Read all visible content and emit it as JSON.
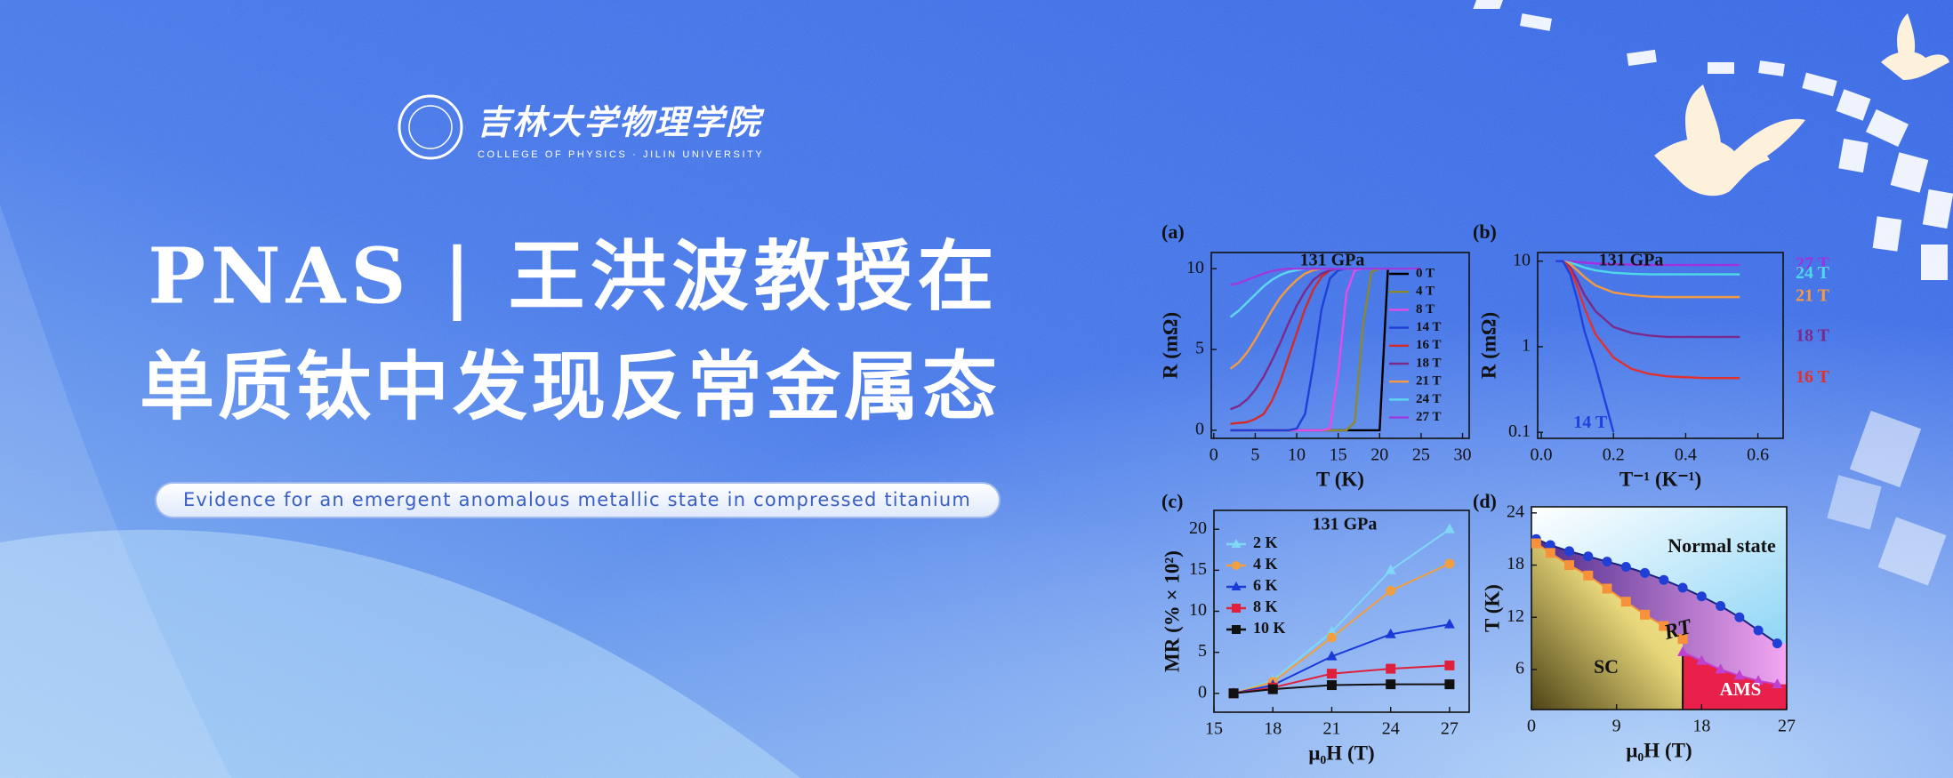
{
  "header": {
    "logo_cn": "吉林大学物理学院",
    "logo_en": "COLLEGE OF PHYSICS · JILIN UNIVERSITY"
  },
  "headline": [
    "PNAS | 王洪波教授在",
    "单质钛中发现反常金属态"
  ],
  "subtitle": "Evidence for an emergent anomalous metallic state in compressed titanium",
  "chart_data": [
    {
      "type": "line",
      "label": "(a)",
      "annotation": "131 GPa",
      "x_label": "T (K)",
      "y_label": "R (mΩ)",
      "x": [
        2,
        3,
        4,
        5,
        6,
        7,
        8,
        9,
        10,
        11,
        12,
        13,
        14,
        15,
        16,
        17,
        18,
        19,
        20,
        21,
        22,
        23,
        24,
        25
      ],
      "series": [
        {
          "name": "0 T",
          "color": "#000000",
          "values": [
            0,
            0,
            0,
            0,
            0,
            0,
            0,
            0,
            0,
            0,
            0,
            0,
            0,
            0,
            0,
            0,
            0,
            0,
            0,
            10,
            10,
            10,
            10,
            10
          ]
        },
        {
          "name": "4 T",
          "color": "#8a8a2a",
          "values": [
            0,
            0,
            0,
            0,
            0,
            0,
            0,
            0,
            0,
            0,
            0,
            0,
            0,
            0,
            0,
            0.5,
            6.5,
            9.8,
            10,
            10,
            10,
            10,
            10,
            10
          ]
        },
        {
          "name": "8 T",
          "color": "#e84ae8",
          "values": [
            0,
            0,
            0,
            0,
            0,
            0,
            0,
            0,
            0,
            0,
            0,
            0,
            0.1,
            3.5,
            8.5,
            9.9,
            10,
            10,
            10,
            10,
            10,
            10,
            10,
            10
          ]
        },
        {
          "name": "14 T",
          "color": "#1f3fd6",
          "values": [
            0,
            0,
            0,
            0,
            0,
            0,
            0,
            0,
            0.1,
            1,
            4,
            7.5,
            9.4,
            9.9,
            10,
            10,
            10,
            10,
            10,
            10,
            10,
            10,
            10,
            10
          ]
        },
        {
          "name": "16 T",
          "color": "#d42a2a",
          "values": [
            0.4,
            0.45,
            0.5,
            0.7,
            1,
            1.8,
            3,
            4.5,
            6,
            7.5,
            8.7,
            9.5,
            9.9,
            10,
            10,
            10,
            10,
            10,
            10,
            10,
            10,
            10,
            10,
            10
          ]
        },
        {
          "name": "18 T",
          "color": "#7a2a8a",
          "values": [
            1.3,
            1.5,
            1.9,
            2.5,
            3.3,
            4.3,
            5.4,
            6.6,
            7.7,
            8.6,
            9.3,
            9.7,
            9.9,
            10,
            10,
            10,
            10,
            10,
            10,
            10,
            10,
            10,
            10,
            10
          ]
        },
        {
          "name": "21 T",
          "color": "#f59a40",
          "values": [
            3.8,
            4.2,
            4.8,
            5.6,
            6.5,
            7.4,
            8.2,
            8.8,
            9.3,
            9.7,
            9.9,
            10,
            10,
            10,
            10,
            10,
            10,
            10,
            10,
            10,
            10,
            10,
            10,
            10
          ]
        },
        {
          "name": "24 T",
          "color": "#60d8f0",
          "values": [
            7,
            7.4,
            7.9,
            8.4,
            8.9,
            9.3,
            9.6,
            9.8,
            9.9,
            10,
            10,
            10,
            10,
            10,
            10,
            10,
            10,
            10,
            10,
            10,
            10,
            10,
            10,
            10
          ]
        },
        {
          "name": "27 T",
          "color": "#9c3ae0",
          "values": [
            9,
            9.1,
            9.3,
            9.5,
            9.7,
            9.85,
            9.95,
            10,
            10,
            10,
            10,
            10,
            10,
            10,
            10,
            10,
            10,
            10,
            10,
            10,
            10,
            10,
            10,
            10
          ]
        }
      ],
      "xlim": [
        -0.3,
        30.8
      ],
      "xticks": [
        0,
        5,
        10,
        15,
        20,
        25,
        30
      ],
      "ylim": [
        -0.5,
        11
      ],
      "yticks": [
        0,
        5,
        10
      ],
      "legend": "right"
    },
    {
      "type": "line",
      "label": "(b)",
      "annotation": "131 GPa",
      "x_label": "T⁻¹ (K⁻¹)",
      "y_label": "R (mΩ)",
      "log_y": true,
      "x": [
        0.04,
        0.06,
        0.08,
        0.1,
        0.12,
        0.15,
        0.2,
        0.25,
        0.3,
        0.35,
        0.4,
        0.45,
        0.5,
        0.55
      ],
      "series": [
        {
          "name": "27 T",
          "color": "#a030e0",
          "values": [
            10,
            10,
            9.9,
            9.8,
            9.6,
            9.4,
            9.2,
            9.1,
            9,
            9,
            9,
            9,
            9,
            9
          ]
        },
        {
          "name": "24 T",
          "color": "#50d8e8",
          "values": [
            10,
            10,
            9.6,
            9,
            8.4,
            7.8,
            7.3,
            7.1,
            7,
            7,
            7,
            7,
            7,
            7
          ]
        },
        {
          "name": "21 T",
          "color": "#f59a40",
          "values": [
            10,
            10,
            9.2,
            7.8,
            6.5,
            5.2,
            4.3,
            4,
            3.85,
            3.8,
            3.8,
            3.8,
            3.8,
            3.8
          ]
        },
        {
          "name": "18 T",
          "color": "#7a2a8a",
          "values": [
            10,
            10,
            8.5,
            6,
            4,
            2.6,
            1.7,
            1.45,
            1.35,
            1.3,
            1.3,
            1.3,
            1.3,
            1.3
          ]
        },
        {
          "name": "16 T",
          "color": "#e03030",
          "values": [
            10,
            10,
            8,
            5,
            2.8,
            1.4,
            0.75,
            0.55,
            0.48,
            0.45,
            0.44,
            0.43,
            0.43,
            0.43
          ]
        },
        {
          "name": "14 T",
          "color": "#2040e0",
          "values": [
            10,
            10,
            7,
            3.5,
            1.5,
            0.6,
            0.1,
            null,
            null,
            null,
            null,
            null,
            null,
            null
          ]
        }
      ],
      "xlim": [
        -0.01,
        0.67
      ],
      "xticks": [
        {
          "value": 0,
          "label": "0.0"
        },
        0.2,
        0.4,
        0.6
      ],
      "ylim": [
        0.085,
        12.6
      ],
      "yticks": [
        0.1,
        1,
        10
      ],
      "legend": "line-end"
    },
    {
      "type": "line",
      "label": "(c)",
      "annotation": "131 GPa",
      "x_label": "μ₀H (T)",
      "y_label": "MR (% × 10²)",
      "x": [
        16,
        18,
        21,
        24,
        27
      ],
      "series": [
        {
          "name": "2 K",
          "color": "#7fd8f5",
          "marker": "triangle",
          "values": [
            0,
            1.6,
            7.5,
            15,
            20
          ]
        },
        {
          "name": "4 K",
          "color": "#f0a040",
          "marker": "circle",
          "values": [
            0,
            1.4,
            6.8,
            12.5,
            15.8
          ]
        },
        {
          "name": "6 K",
          "color": "#1a3ad8",
          "marker": "triangle",
          "values": [
            0,
            1,
            4.5,
            7.2,
            8.4
          ]
        },
        {
          "name": "8 K",
          "color": "#e0203a",
          "marker": "square",
          "values": [
            0,
            0.7,
            2.4,
            3,
            3.4
          ]
        },
        {
          "name": "10 K",
          "color": "#111111",
          "marker": "square",
          "values": [
            0,
            0.5,
            1,
            1.1,
            1.1
          ]
        }
      ],
      "xlim": [
        15,
        28
      ],
      "xticks": [
        15,
        18,
        21,
        24,
        27
      ],
      "ylim": [
        -2.3,
        22.3
      ],
      "yticks": [
        0,
        5,
        10,
        15,
        20
      ],
      "legend": "upper left"
    },
    {
      "type": "phase",
      "label": "(d)",
      "x_label": "μ₀H (T)",
      "y_label": "T (K)",
      "annotations": [
        "Normal state",
        "RT",
        "SC",
        "AMS"
      ],
      "series": [
        {
          "color": "#1f3fd6",
          "marker": "circle",
          "x": [
            0.5,
            2,
            4,
            6,
            8,
            10,
            12,
            14,
            16,
            18,
            20,
            22,
            24,
            26
          ],
          "values": [
            21,
            20.3,
            19.6,
            19,
            18.4,
            17.8,
            17.1,
            16.3,
            15.4,
            14.4,
            13.3,
            12,
            10.5,
            9
          ]
        },
        {
          "color": "#f7913a",
          "marker": "square",
          "x": [
            0.5,
            2,
            4,
            6,
            8,
            10,
            12,
            14,
            16
          ],
          "values": [
            20.5,
            19.4,
            18,
            16.8,
            15.3,
            13.8,
            12.3,
            11,
            9.5
          ]
        },
        {
          "color": "#c040d0",
          "marker": "triangle",
          "x": [
            16,
            18,
            20,
            22,
            24,
            26
          ],
          "values": [
            8,
            7,
            6,
            5.3,
            4.7,
            4.3
          ]
        }
      ],
      "xlim": [
        0,
        27
      ],
      "xticks": [
        0,
        9,
        18,
        27
      ],
      "ylim": [
        1.4,
        24.7
      ],
      "yticks": [
        6,
        12,
        18,
        24
      ]
    }
  ]
}
